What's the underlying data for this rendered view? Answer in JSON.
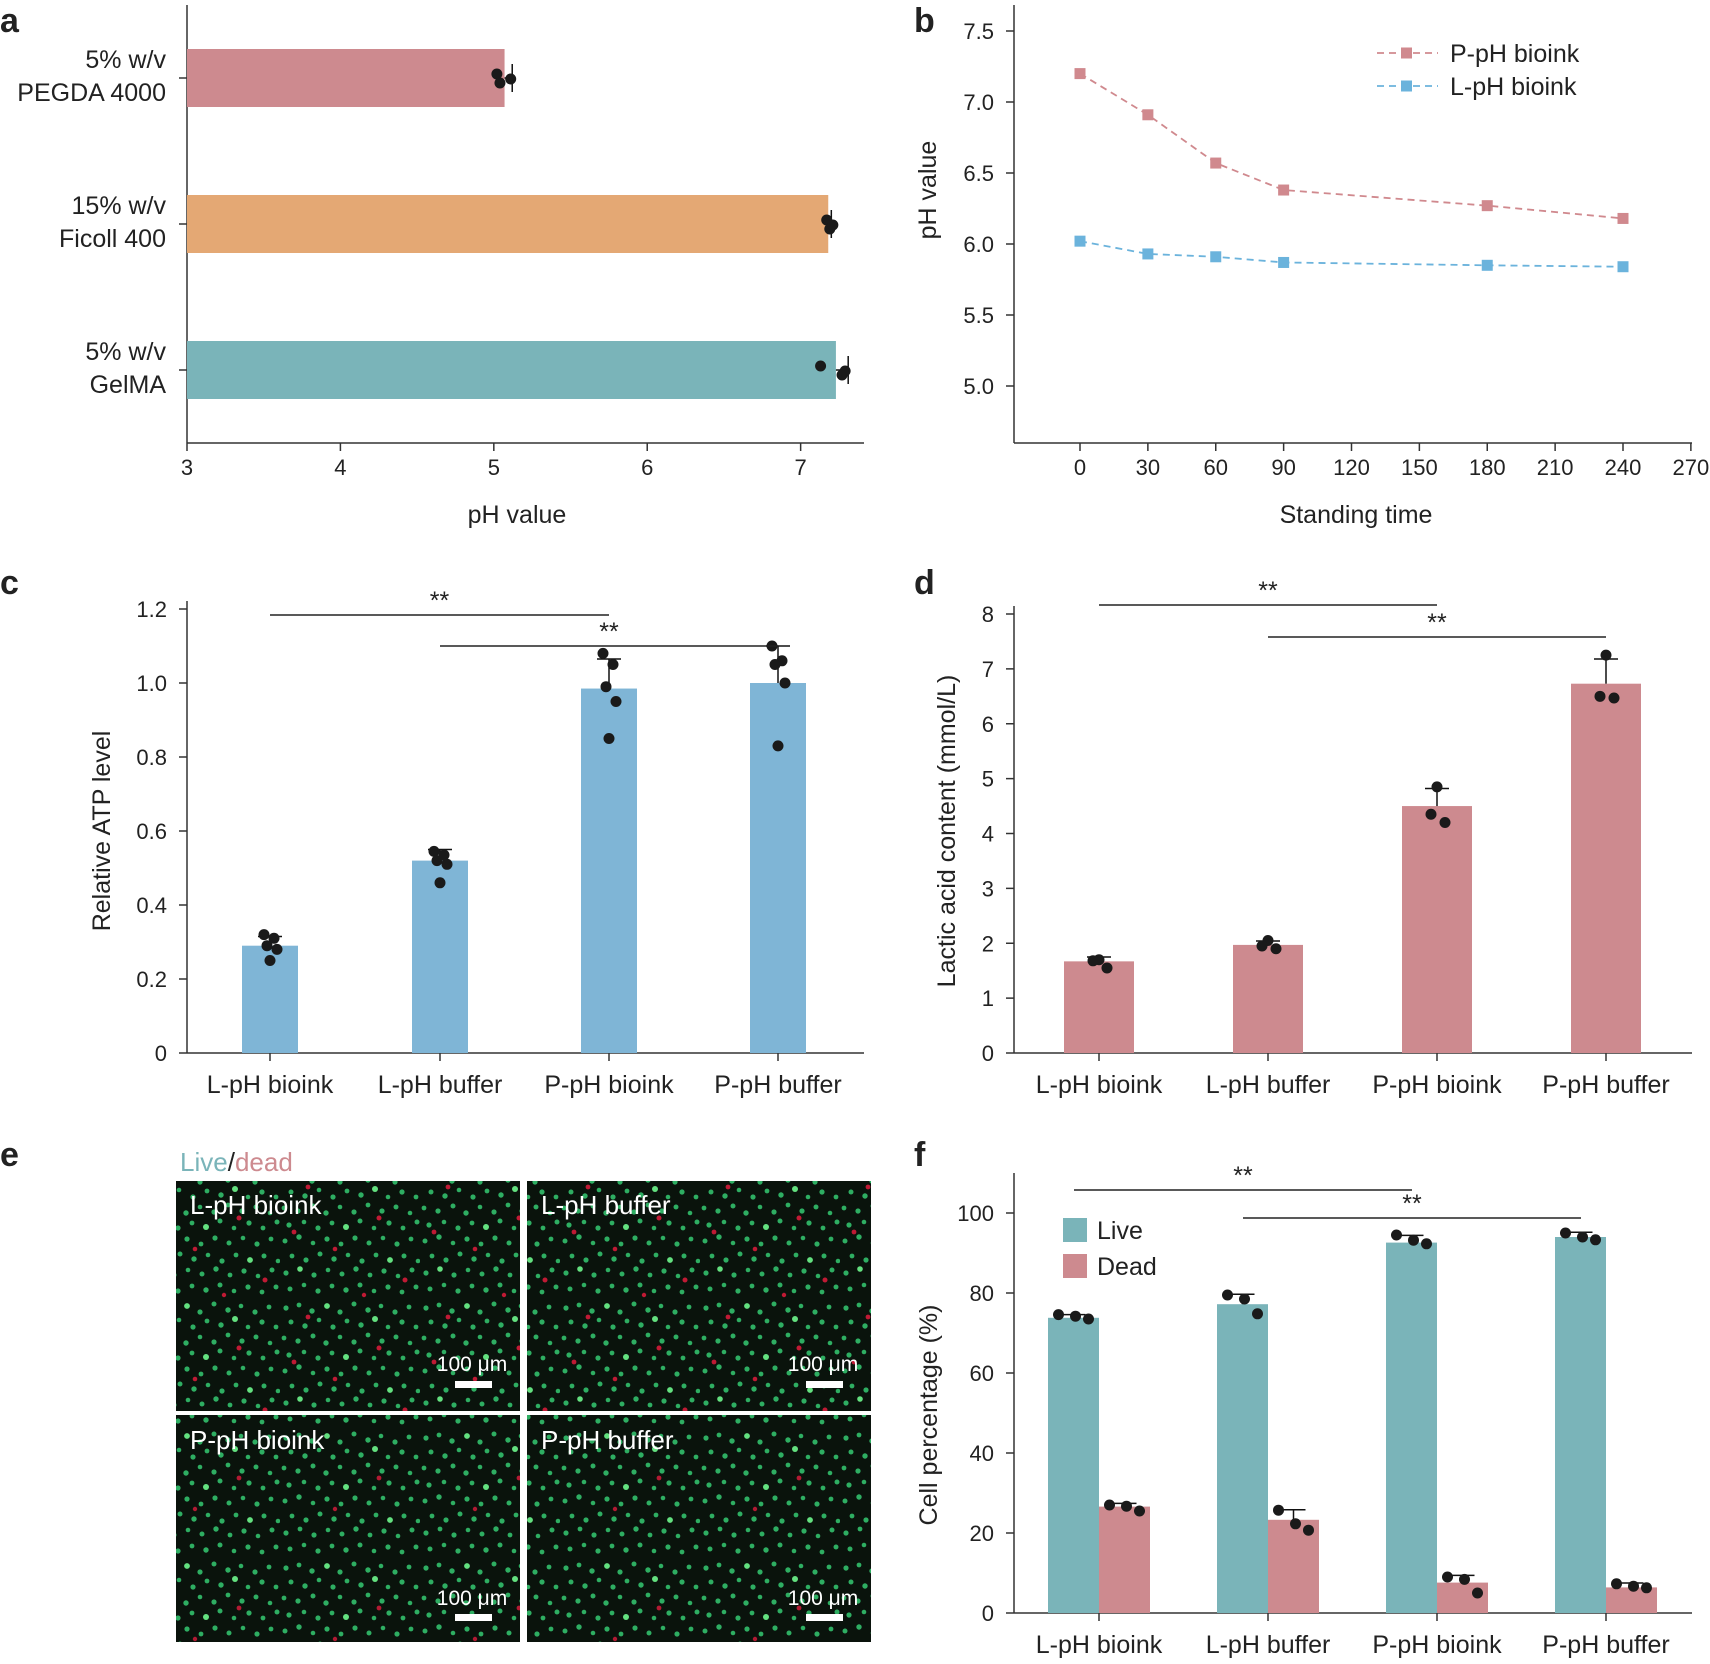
{
  "figure_colors": {
    "pink": "#CD8A8F",
    "orange": "#E4A874",
    "teal": "#7AB4B9",
    "blue": "#7FB5D6",
    "line_pink": "#D0898E",
    "line_blue": "#6BB3DC",
    "dot": "#1a1a1a"
  },
  "chart_data": [
    {
      "id": "a",
      "panel_label": "a",
      "type": "bar",
      "orientation": "horizontal",
      "categories": [
        [
          "5% w/v",
          "PEGDA 4000"
        ],
        [
          "15% w/v",
          "Ficoll 400"
        ],
        [
          "5% w/v",
          "GelMA"
        ]
      ],
      "values": [
        5.07,
        7.18,
        7.23
      ],
      "errors": [
        0.05,
        0.02,
        0.08
      ],
      "points": [
        [
          5.02,
          5.04,
          5.11
        ],
        [
          7.17,
          7.19,
          7.21
        ],
        [
          7.13,
          7.27,
          7.29
        ]
      ],
      "colors": [
        "#CD8A8F",
        "#E4A874",
        "#7AB4B9"
      ],
      "xlim": [
        3,
        7.4
      ],
      "xticks": [
        3,
        4,
        5,
        6,
        7
      ],
      "xlabel": "pH value",
      "ylabel": ""
    },
    {
      "id": "b",
      "panel_label": "b",
      "type": "line",
      "x": [
        0,
        30,
        60,
        90,
        180,
        240
      ],
      "series": [
        {
          "name": "P-pH bioink",
          "values": [
            7.2,
            6.91,
            6.57,
            6.38,
            6.27,
            6.18
          ],
          "color": "#D0898E"
        },
        {
          "name": "L-pH bioink",
          "values": [
            6.02,
            5.93,
            5.91,
            5.87,
            5.85,
            5.84
          ],
          "color": "#6BB3DC"
        }
      ],
      "xticks": [
        0,
        30,
        60,
        90,
        120,
        150,
        180,
        210,
        240,
        270
      ],
      "xlim": [
        -30,
        270
      ],
      "ylim": [
        4.6,
        7.65
      ],
      "yticks": [
        "5.0",
        "5.5",
        "6.0",
        "6.5",
        "7.0",
        "7.5"
      ],
      "xlabel": "Standing time",
      "ylabel": "pH value",
      "legend": "top-right"
    },
    {
      "id": "c",
      "panel_label": "c",
      "type": "bar",
      "categories": [
        "L-pH bioink",
        "L-pH buffer",
        "P-pH bioink",
        "P-pH buffer"
      ],
      "values": [
        0.29,
        0.52,
        0.985,
        1.0
      ],
      "errors": [
        0.025,
        0.03,
        0.08,
        0.1
      ],
      "points": [
        [
          0.32,
          0.31,
          0.29,
          0.28,
          0.25
        ],
        [
          0.545,
          0.535,
          0.52,
          0.51,
          0.46
        ],
        [
          1.08,
          1.05,
          0.99,
          0.95,
          0.85
        ],
        [
          1.1,
          1.06,
          1.05,
          1.0,
          0.83
        ]
      ],
      "color": "#7FB5D6",
      "ylim": [
        0,
        1.2
      ],
      "yticks": [
        "0",
        "0.2",
        "0.4",
        "0.6",
        "0.8",
        "1.0",
        "1.2"
      ],
      "xlabel": "",
      "ylabel": "Relative ATP level",
      "significance": [
        {
          "from": 0,
          "to": 2,
          "label": "**"
        },
        {
          "from": 1,
          "to": 3,
          "label": "**"
        }
      ]
    },
    {
      "id": "d",
      "panel_label": "d",
      "type": "bar",
      "categories": [
        "L-pH bioink",
        "L-pH buffer",
        "P-pH bioink",
        "P-pH buffer"
      ],
      "values": [
        1.67,
        1.97,
        4.5,
        6.73
      ],
      "errors": [
        0.08,
        0.07,
        0.32,
        0.45
      ],
      "points": [
        [
          1.7,
          1.68,
          1.55
        ],
        [
          2.05,
          1.95,
          1.9
        ],
        [
          4.85,
          4.35,
          4.2
        ],
        [
          7.25,
          6.5,
          6.47
        ]
      ],
      "color": "#CD8A8F",
      "ylim": [
        0,
        8
      ],
      "yticks": [
        "0",
        "1",
        "2",
        "3",
        "4",
        "5",
        "6",
        "7",
        "8"
      ],
      "xlabel": "",
      "ylabel": "Lactic acid content (mmol/L)",
      "significance": [
        {
          "from": 0,
          "to": 2,
          "label": "**"
        },
        {
          "from": 1,
          "to": 3,
          "label": "**"
        }
      ]
    },
    {
      "id": "f",
      "panel_label": "f",
      "type": "bar",
      "grouped": true,
      "categories": [
        "L-pH bioink",
        "L-pH buffer",
        "P-pH bioink",
        "P-pH buffer"
      ],
      "series": [
        {
          "name": "Live",
          "values": [
            73.8,
            77.2,
            92.6,
            94.0
          ],
          "errors": [
            0.8,
            2.5,
            1.8,
            1.2
          ],
          "points": [
            [
              74.6,
              74.2,
              73.5
            ],
            [
              79.5,
              78.5,
              74.8
            ],
            [
              94.5,
              93.2,
              92.3
            ],
            [
              95.0,
              94.0,
              93.3
            ]
          ],
          "color": "#7AB4B9"
        },
        {
          "name": "Dead",
          "values": [
            26.6,
            23.3,
            7.6,
            6.4
          ],
          "errors": [
            0.8,
            2.5,
            1.8,
            1.1
          ],
          "points": [
            [
              27.0,
              26.7,
              25.5
            ],
            [
              25.7,
              22.3,
              20.7
            ],
            [
              9.0,
              8.4,
              5.0
            ],
            [
              7.3,
              6.7,
              6.3
            ]
          ],
          "color": "#CD8A8F"
        }
      ],
      "ylim": [
        0,
        110
      ],
      "yticks": [
        "0",
        "20",
        "40",
        "60",
        "80",
        "100"
      ],
      "xlabel": "",
      "ylabel": "Cell percentage (%)",
      "legend": "top-left",
      "significance": [
        {
          "from": 0,
          "to": 2,
          "label": "**"
        },
        {
          "from": 1,
          "to": 3,
          "label": "**"
        }
      ]
    }
  ],
  "panel_e": {
    "panel_label": "e",
    "title_live": "Live",
    "title_sep": "/",
    "title_dead": "dead",
    "images": [
      {
        "label": "L-pH bioink",
        "scale": "100 μm"
      },
      {
        "label": "L-pH buffer",
        "scale": "100 μm"
      },
      {
        "label": "P-pH bioink",
        "scale": "100 μm"
      },
      {
        "label": "P-pH buffer",
        "scale": "100 μm"
      }
    ]
  }
}
